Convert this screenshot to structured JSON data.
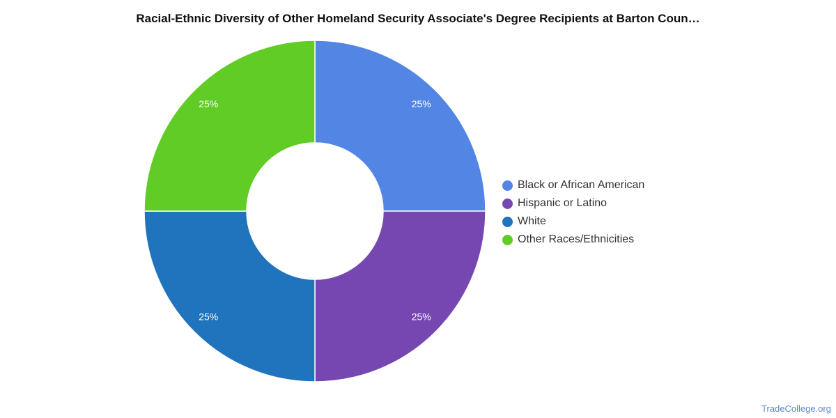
{
  "chart_data": {
    "type": "pie",
    "variant": "donut",
    "title": "Racial-Ethnic Diversity of Other Homeland Security Associate's Degree Recipients at Barton Coun…",
    "series": [
      {
        "name": "Black or African American",
        "value": 25,
        "label": "25%",
        "color": "#5386e4"
      },
      {
        "name": "Hispanic or Latino",
        "value": 25,
        "label": "25%",
        "color": "#7647b0"
      },
      {
        "name": "White",
        "value": 25,
        "label": "25%",
        "color": "#1f74bd"
      },
      {
        "name": "Other Races/Ethnicities",
        "value": 25,
        "label": "25%",
        "color": "#62cc26"
      }
    ],
    "legend_position": "right"
  },
  "footer": {
    "source": "TradeCollege.org"
  }
}
